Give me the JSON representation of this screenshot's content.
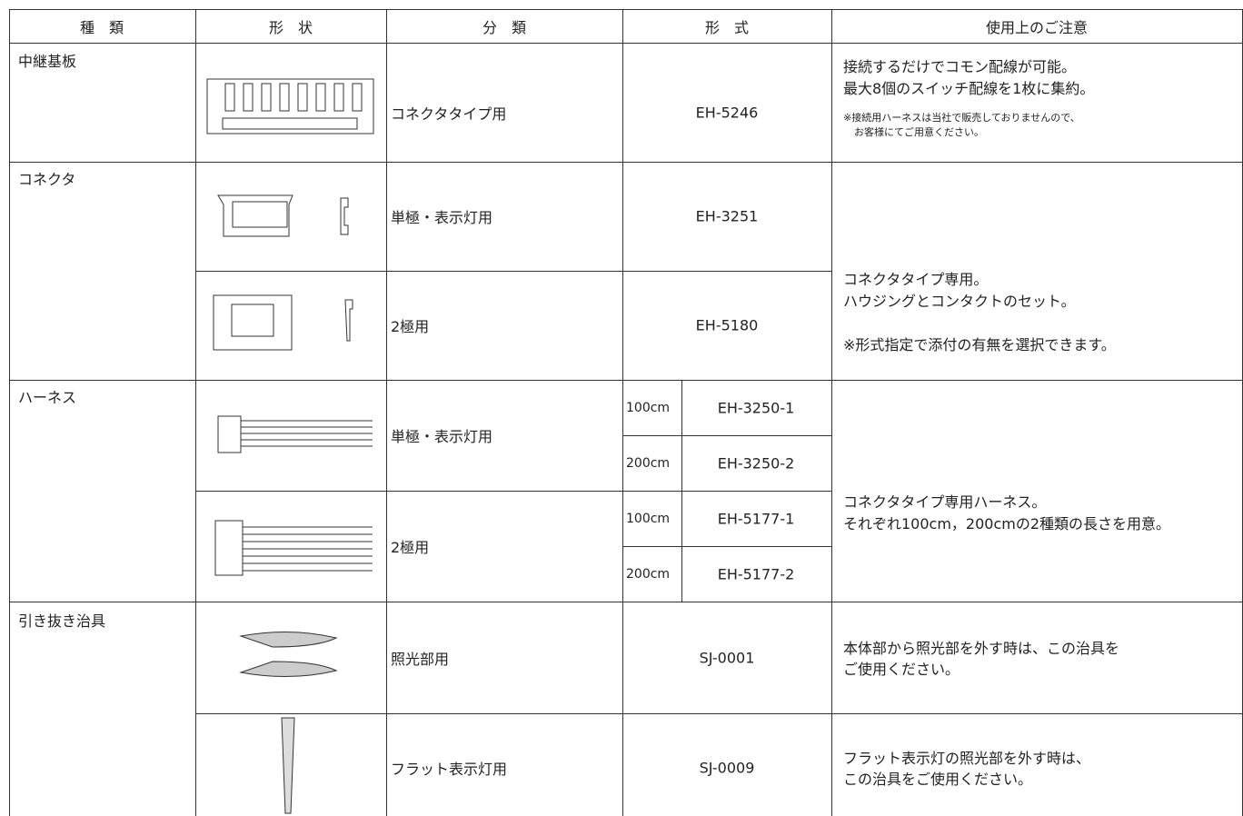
{
  "table": {
    "header": [
      "種　類",
      "形　状",
      "分　類",
      "形　式",
      "使用上のご注意"
    ],
    "groups": [
      {
        "kind": "中継基板",
        "items": [
          {
            "category": "コネクタタイプ用",
            "model": "EH-5246"
          }
        ],
        "note": [
          "接続するだけでコモン配線が可能。",
          "最大8個のスイッチ配線を1枚に集約。"
        ],
        "fine_print": [
          "※接続用ハーネスは当社で販売しておりませんので、",
          "お客様にてご用意ください。"
        ]
      },
      {
        "kind": "コネクタ",
        "items": [
          {
            "category": "単極・表示灯用",
            "model": "EH-3251"
          },
          {
            "category": "2極用",
            "model": "EH-5180"
          }
        ],
        "note": [
          "コネクタタイプ専用。",
          "ハウジングとコンタクトのセット。",
          "※形式指定で添付の有無を選択できます。"
        ]
      },
      {
        "kind": "ハーネス",
        "items": [
          {
            "category": "単極・表示灯用",
            "variants": [
              {
                "length": "100cm",
                "model": "EH-3250-1"
              },
              {
                "length": "200cm",
                "model": "EH-3250-2"
              }
            ]
          },
          {
            "category": "2極用",
            "variants": [
              {
                "length": "100cm",
                "model": "EH-5177-1"
              },
              {
                "length": "200cm",
                "model": "EH-5177-2"
              }
            ]
          }
        ],
        "note": [
          "コネクタタイプ専用ハーネス。",
          "それぞれ100cm，200cmの2種類の長さを用意。"
        ]
      },
      {
        "kind": "引き抜き治具",
        "items": [
          {
            "category": "照光部用",
            "model": "SJ-0001",
            "note": [
              "本体部から照光部を外す時は、この治具を",
              "ご使用ください。"
            ]
          },
          {
            "category": "フラット表示灯用",
            "model": "SJ-0009",
            "note": [
              "フラット表示灯の照光部を外す時は、",
              "この治具をご使用ください。"
            ]
          }
        ]
      }
    ]
  }
}
